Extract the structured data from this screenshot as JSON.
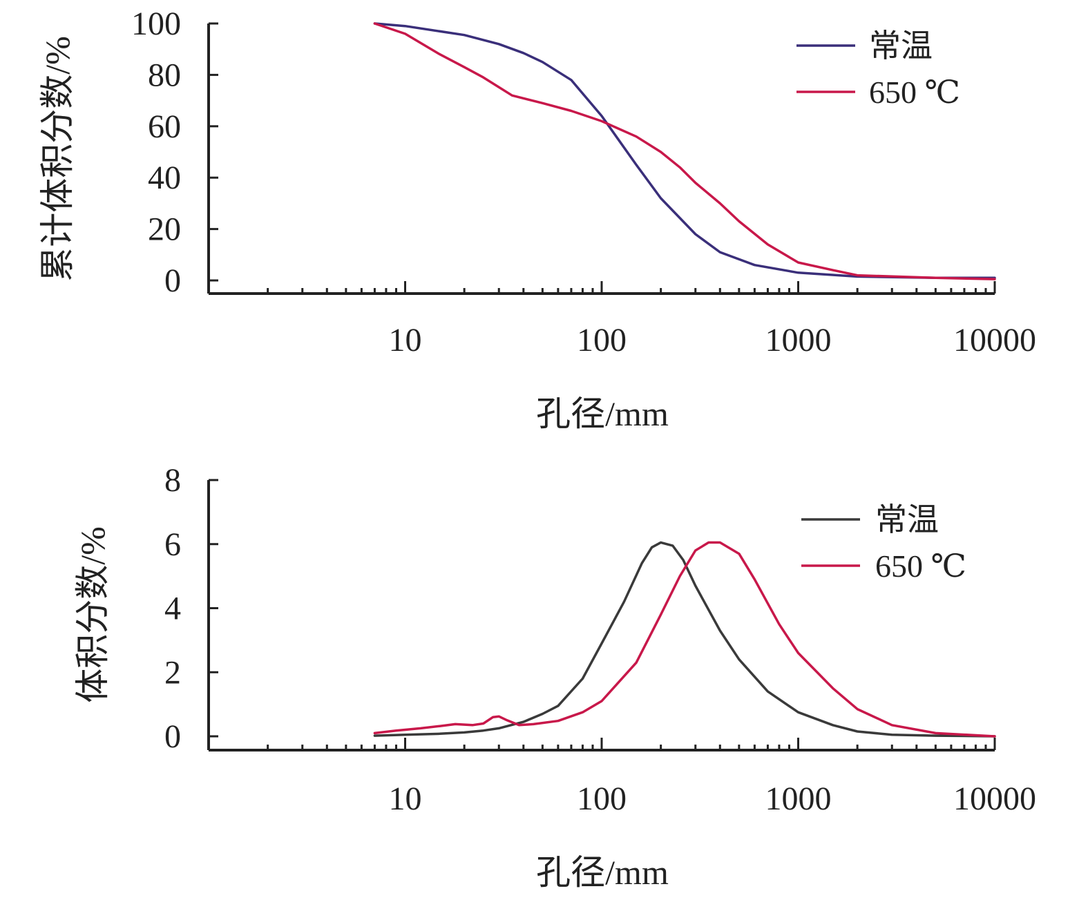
{
  "chart_data": [
    {
      "type": "line",
      "x_scale": "log",
      "xlabel": "孔径/mm",
      "ylabel": "累计体积分数/%",
      "xlim": [
        1,
        10000
      ],
      "ylim": [
        0,
        100
      ],
      "x_ticks": [
        10,
        100,
        1000,
        10000
      ],
      "x_tick_labels": [
        "10",
        "100",
        "1000",
        "10000"
      ],
      "y_ticks": [
        0,
        20,
        40,
        60,
        80,
        100
      ],
      "y_tick_labels": [
        "0",
        "20",
        "40",
        "60",
        "80",
        "100"
      ],
      "grid": false,
      "legend_position": "top-right",
      "series": [
        {
          "name": "常温",
          "color": "#3a2f7a",
          "points": [
            [
              7,
              100
            ],
            [
              10,
              99
            ],
            [
              20,
              95.5
            ],
            [
              30,
              92
            ],
            [
              40,
              88.5
            ],
            [
              50,
              85
            ],
            [
              70,
              78
            ],
            [
              100,
              64
            ],
            [
              150,
              45
            ],
            [
              200,
              32
            ],
            [
              300,
              18
            ],
            [
              400,
              11
            ],
            [
              600,
              6
            ],
            [
              1000,
              3
            ],
            [
              2000,
              1.5
            ],
            [
              5000,
              1
            ],
            [
              10000,
              1
            ]
          ]
        },
        {
          "name": "650 ℃",
          "color": "#c8184a",
          "points": [
            [
              7,
              100
            ],
            [
              10,
              96
            ],
            [
              15,
              88
            ],
            [
              20,
              83
            ],
            [
              25,
              79
            ],
            [
              35,
              72
            ],
            [
              50,
              69
            ],
            [
              70,
              66
            ],
            [
              100,
              62
            ],
            [
              150,
              56
            ],
            [
              200,
              50
            ],
            [
              250,
              44
            ],
            [
              300,
              38
            ],
            [
              400,
              30
            ],
            [
              500,
              23
            ],
            [
              700,
              14
            ],
            [
              1000,
              7
            ],
            [
              1500,
              4
            ],
            [
              2000,
              2
            ],
            [
              5000,
              1
            ],
            [
              10000,
              0.5
            ]
          ]
        }
      ]
    },
    {
      "type": "line",
      "x_scale": "log",
      "xlabel": "孔径/mm",
      "ylabel": "体积分数/%",
      "xlim": [
        1,
        10000
      ],
      "ylim": [
        0,
        8
      ],
      "x_ticks": [
        10,
        100,
        1000,
        10000
      ],
      "x_tick_labels": [
        "10",
        "100",
        "1000",
        "10000"
      ],
      "y_ticks": [
        0,
        2,
        4,
        6,
        8
      ],
      "y_tick_labels": [
        "0",
        "2",
        "4",
        "6",
        "8"
      ],
      "grid": false,
      "legend_position": "top-right",
      "series": [
        {
          "name": "常温",
          "color": "#3a3a3a",
          "points": [
            [
              7,
              0.02
            ],
            [
              10,
              0.05
            ],
            [
              15,
              0.08
            ],
            [
              20,
              0.12
            ],
            [
              25,
              0.18
            ],
            [
              30,
              0.25
            ],
            [
              40,
              0.45
            ],
            [
              50,
              0.7
            ],
            [
              60,
              0.95
            ],
            [
              80,
              1.8
            ],
            [
              100,
              2.9
            ],
            [
              130,
              4.2
            ],
            [
              160,
              5.4
            ],
            [
              180,
              5.9
            ],
            [
              200,
              6.05
            ],
            [
              230,
              5.95
            ],
            [
              260,
              5.5
            ],
            [
              300,
              4.7
            ],
            [
              400,
              3.3
            ],
            [
              500,
              2.4
            ],
            [
              700,
              1.4
            ],
            [
              1000,
              0.75
            ],
            [
              1500,
              0.35
            ],
            [
              2000,
              0.15
            ],
            [
              3000,
              0.05
            ],
            [
              5000,
              0.02
            ],
            [
              10000,
              0.0
            ]
          ]
        },
        {
          "name": "650 ℃",
          "color": "#c8184a",
          "points": [
            [
              7,
              0.1
            ],
            [
              9,
              0.18
            ],
            [
              12,
              0.25
            ],
            [
              15,
              0.32
            ],
            [
              18,
              0.38
            ],
            [
              22,
              0.35
            ],
            [
              25,
              0.4
            ],
            [
              28,
              0.6
            ],
            [
              30,
              0.62
            ],
            [
              33,
              0.5
            ],
            [
              38,
              0.35
            ],
            [
              45,
              0.38
            ],
            [
              60,
              0.48
            ],
            [
              80,
              0.75
            ],
            [
              100,
              1.1
            ],
            [
              150,
              2.3
            ],
            [
              200,
              3.8
            ],
            [
              250,
              5.0
            ],
            [
              300,
              5.8
            ],
            [
              350,
              6.05
            ],
            [
              400,
              6.05
            ],
            [
              500,
              5.7
            ],
            [
              600,
              4.9
            ],
            [
              800,
              3.5
            ],
            [
              1000,
              2.6
            ],
            [
              1500,
              1.5
            ],
            [
              2000,
              0.85
            ],
            [
              3000,
              0.35
            ],
            [
              5000,
              0.1
            ],
            [
              10000,
              0.0
            ]
          ]
        }
      ]
    }
  ]
}
